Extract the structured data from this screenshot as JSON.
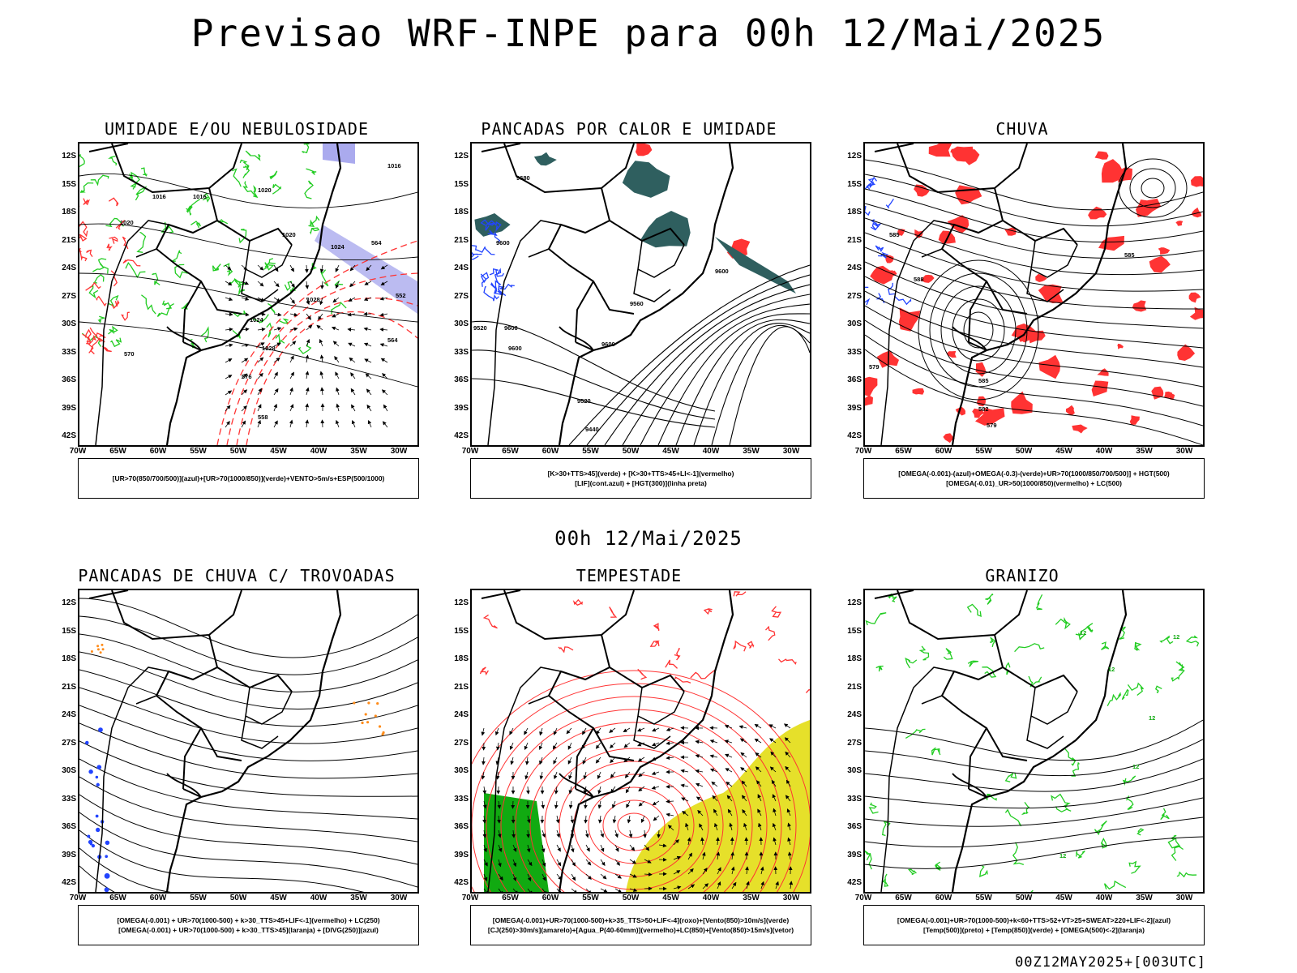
{
  "header": {
    "title": "Previsao WRF-INPE  para 00h 12/Mai/2025",
    "subtitle": "00h 12/Mai/2025",
    "footer": "00Z12MAY2025+[003UTC]"
  },
  "axes": {
    "lat_labels": [
      "12S",
      "15S",
      "18S",
      "21S",
      "24S",
      "27S",
      "30S",
      "33S",
      "36S",
      "39S",
      "42S"
    ],
    "lon_labels": [
      "70W",
      "65W",
      "60W",
      "55W",
      "50W",
      "45W",
      "40W",
      "35W",
      "30W"
    ]
  },
  "colors": {
    "humid_green": "#22cc22",
    "red": "#ff3333",
    "blue": "#2244ff",
    "lavender": "#aaaaee",
    "dark_teal": "#2f5f5f",
    "yellow": "#e6e02a",
    "orange": "#ff8c1a"
  },
  "panels": [
    {
      "title": "UMIDADE E/OU NEBULOSIDADE",
      "legend": [
        "[UR>70(850/700/500)](azul)+[UR>70(1000/850)](verde)+VENTO>5m/s+ESP(500/1000)"
      ],
      "contour_labels": [
        "1016",
        "1016",
        "1016",
        "1020",
        "1020",
        "1020",
        "1024",
        "1024",
        "1028",
        "1028",
        "564",
        "570",
        "558",
        "552",
        "564",
        "576"
      ]
    },
    {
      "title": "PANCADAS POR CALOR E UMIDADE",
      "legend": [
        "[K>30+TTS>45](verde) + [K>30+TTS>45+LI<-1](vermelho)",
        "[LIF](cont.azul) + [HGT(300)](linha preta)"
      ],
      "contour_labels": [
        "9680",
        "9600",
        "9600",
        "9560",
        "9600",
        "9520",
        "9600",
        "9520",
        "9440",
        "9600"
      ]
    },
    {
      "title": "CHUVA",
      "legend": [
        "[OMEGA(-0.001)-(azul)+OMEGA(-0.3)-(verde)+UR>70(1000/850/700/500)] + HGT(500)",
        "[OMEGA(-0.01)_UR>50(1000/850)(vermelho) + LC(500)"
      ],
      "contour_labels": [
        "585",
        "585",
        "588",
        "585",
        "582",
        "579",
        "579"
      ]
    },
    {
      "title": "PANCADAS DE CHUVA C/ TROVOADAS",
      "legend": [
        "[OMEGA(-0.001) + UR>70(1000-500) + k>30_TTS>45+LIF<-1](vermelho) + LC(250)",
        "[OMEGA(-0.001) + UR>70(1000-500) + k>30_TTS>45](laranja) + [DIVG(250)](azul)"
      ],
      "contour_labels": []
    },
    {
      "title": "TEMPESTADE",
      "legend": [
        "[OMEGA(-0.001)+UR>70(1000-500)+k>35_TTS>50+LIF<-4](roxo)+[Vento(850)>10m/s](verde)",
        "[CJ(250)>30m/s](amarelo)+[Agua_P(40-60mm)](vermelho)+LC(850)+[Vento(850)>15m/s](vetor)"
      ],
      "contour_labels": []
    },
    {
      "title": "GRANIZO",
      "legend": [
        "[OMEGA(-0.001)+UR>70(1000-500)+k<60+TTS>52+VT>25+SWEAT>220+LIF<-2](azul)",
        "[Temp(500)](preto) + [Temp(850)](verde) + [OMEGA(500)<-2](laranja)"
      ],
      "contour_labels": [
        "12",
        "12",
        "12",
        "12",
        "12",
        "12"
      ]
    }
  ]
}
